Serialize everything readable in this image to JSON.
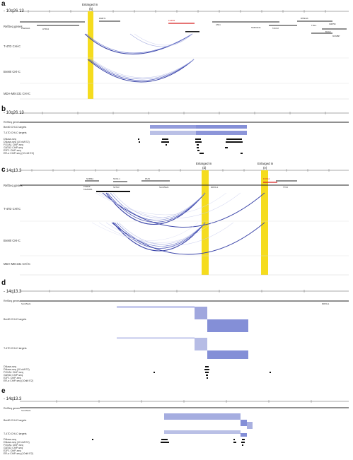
{
  "panels": [
    {
      "letter": "a",
      "region": "- 10q26.13",
      "enlarged": "Enlarged in",
      "enlarged_ref": "(b)",
      "tracks": [
        "RefSeq genes",
        "T-47D CHi-C",
        "Bre80 CHi-C",
        "MDA-MB-231 CHi-C"
      ],
      "genes": [
        "FGFR2",
        "PLEKHA1",
        "HTRA1",
        "DMBT1",
        "ATE1",
        "NSMCE4A",
        "TACC2",
        "BTBD16",
        "TIAL1",
        "BAG3",
        "INPP5F",
        "MCMBP"
      ]
    },
    {
      "letter": "b",
      "region": "- 10q26.13",
      "tracks": [
        "RefSeq genes",
        "Bre80 CHi-C targets",
        "T-47D CHi-C targets",
        "DNase-seq",
        "DNase-seq (10 nM E2)",
        "FOXA1 ChIP-seq",
        "GATA3 ChIP-seq",
        "E2F1 ChIP-seq",
        "ER-α ChIP-seq (10 nM E2)"
      ]
    },
    {
      "letter": "c",
      "region": "- 14q13.3",
      "enlarged": "Enlarged in",
      "enlarged_ref_1": "(d)",
      "enlarged_ref_2": "(e)",
      "tracks": [
        "RefSeq genes",
        "T-47D CHi-C",
        "Bre80 CHi-C",
        "MDA-MB-231 CHi-C"
      ],
      "genes": [
        "NFKBIA",
        "PSMA6",
        "KIAA0391",
        "NKX2-1",
        "SFTA3",
        "PAX9",
        "SLC25A21",
        "MIPOL1",
        "FOXA1",
        "TTC6"
      ]
    },
    {
      "letter": "d",
      "region": "- 14q13.3",
      "tracks": [
        "RefSeq genes",
        "Bre80 CHi-C targets",
        "T-47D CHi-C targets",
        "DNase-seq",
        "DNase-seq (10 nM E2)",
        "FOXA1 ChIP-seq",
        "GATA3 ChIP-seq",
        "E2F1 ChIP-seq",
        "ER-α ChIP-seq (10nM E2)"
      ],
      "genes": [
        "SLC25A21",
        "MIPOL1"
      ]
    },
    {
      "letter": "e",
      "region": "- 14q13.3",
      "tracks": [
        "RefSeq genes",
        "Bre80 CHi-C targets",
        "T-47D CHi-C targets",
        "DNase-seq",
        "DNase-seq (10 nM E2)",
        "FOXA1 ChIP-seq",
        "GATA3 ChIP-seq",
        "E2F1 ChIP-seq",
        "ER-α ChIP-seq (10nM E2)"
      ],
      "genes": [
        "SLC25A21"
      ]
    }
  ],
  "colors": {
    "highlight": "#f5dc1e",
    "arc": "#3a44a8",
    "arc_light": "#a9b0e0",
    "target": "#6f7bd0",
    "target_light": "#c9cdef",
    "gene_red": "#d62020"
  }
}
